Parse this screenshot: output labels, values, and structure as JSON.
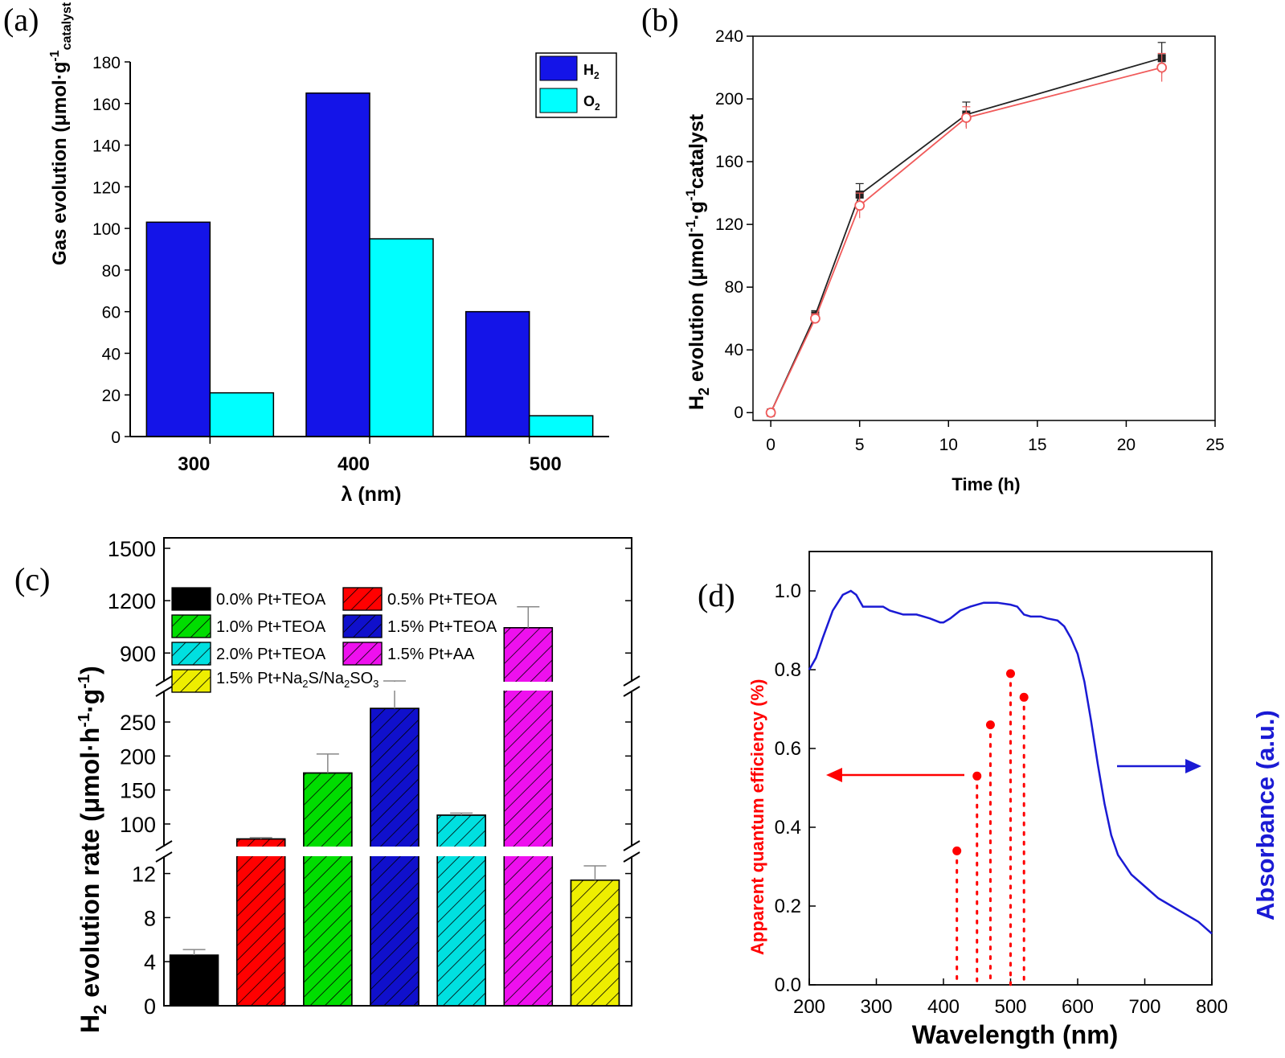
{
  "chart_data": [
    {
      "panel_label": "(a)",
      "type": "bar",
      "categories": [
        "300",
        "400",
        "500"
      ],
      "series": [
        {
          "name": "H2",
          "name_main": "H",
          "name_sub": "2",
          "color": "#1414e8",
          "values": [
            103,
            165,
            60
          ]
        },
        {
          "name": "O2",
          "name_main": "O",
          "name_sub": "2",
          "color": "#00ffff",
          "values": [
            21,
            95,
            10
          ]
        }
      ],
      "xlabel": "λ (nm)",
      "ylabel": "Gas evolution (μmol·g-1catalyst",
      "ylabel_parts": {
        "main": "Gas evolution (μmol·g",
        "sup": "-1",
        "sub": "catalyst"
      },
      "ylim": [
        0,
        180
      ],
      "yticks": [
        0,
        20,
        40,
        60,
        80,
        100,
        120,
        140,
        160,
        180
      ],
      "legend_position": "top-right"
    },
    {
      "panel_label": "(b)",
      "type": "line",
      "x": [
        0,
        2.5,
        5,
        11,
        22
      ],
      "series": [
        {
          "name": "",
          "marker": "filled-square",
          "color": "#222222",
          "values": [
            0,
            62,
            139,
            190,
            226
          ],
          "errors": [
            0,
            3,
            7,
            8,
            10
          ]
        },
        {
          "name": "",
          "marker": "open-circle",
          "color": "#f05a5a",
          "values": [
            0,
            60,
            132,
            188,
            220
          ],
          "errors": [
            0,
            3,
            8,
            7,
            9
          ]
        }
      ],
      "xlabel": "Time (h)",
      "ylabel": "H2 evolution (μmol-1·g-1catalyst",
      "ylabel_parts": {
        "h": "H",
        "two": "2",
        "rest1": " evolution (μmol",
        "sup1": "-1",
        "mid": "·g",
        "sup2": "-1",
        "rest2": "catalyst"
      },
      "xlim": [
        -1,
        25
      ],
      "ylim": [
        -5,
        240
      ],
      "xticks": [
        0,
        5,
        10,
        15,
        20,
        25
      ],
      "yticks": [
        0,
        40,
        80,
        120,
        160,
        200,
        240
      ]
    },
    {
      "panel_label": "(c)",
      "type": "bar",
      "categories": [
        "0.0% Pt+TEOA",
        "0.5% Pt+TEOA",
        "1.0% Pt+TEOA",
        "1.5% Pt+TEOA",
        "2.0% Pt+TEOA",
        "1.5% Pt+AA",
        "1.5% Pt+Na2S/Na2SO3"
      ],
      "values": [
        4.6,
        78,
        175,
        270,
        113,
        1045,
        11.4
      ],
      "errors": [
        0.5,
        2,
        28,
        30,
        3,
        120,
        1.3
      ],
      "colors": [
        "#000000",
        "#ff0000",
        "#00dd00",
        "#1010cc",
        "#00e0e0",
        "#ee10ee",
        "#eeee00"
      ],
      "hatched": [
        false,
        true,
        true,
        true,
        true,
        true,
        true
      ],
      "legend_labels": [
        {
          "main": "0.0% Pt+TEOA"
        },
        {
          "main": "0.5% Pt+TEOA"
        },
        {
          "main": "1.0% Pt+TEOA"
        },
        {
          "main": "1.5% Pt+TEOA"
        },
        {
          "main": "2.0% Pt+TEOA"
        },
        {
          "main": "1.5% Pt+AA"
        },
        {
          "main": "1.5% Pt+Na",
          "sub1": "2",
          "mid": "S/Na",
          "sub2": "2",
          "end": "SO",
          "sub3": "3"
        }
      ],
      "ylabel": "H2 evolution rate (μmol·h-1·g-1)",
      "ylabel_parts": {
        "h": "H",
        "two": "2",
        "rest1": " evolution rate (μmol·h",
        "sup1": "-1",
        "mid": "·g",
        "sup2": "-1",
        "end": ")"
      },
      "broken_axis": true,
      "segments": [
        {
          "range": [
            0,
            13.5
          ],
          "ticks": [
            0,
            4,
            8,
            12
          ]
        },
        {
          "range": [
            68,
            295
          ],
          "ticks": [
            100,
            150,
            200,
            250
          ]
        },
        {
          "range": [
            740,
            1560
          ],
          "ticks": [
            900,
            1200,
            1500
          ]
        }
      ],
      "legend_position": "top-left"
    },
    {
      "panel_label": "(d)",
      "type": "scatter",
      "series": [
        {
          "name": "Apparent quantum efficiency",
          "color": "#ff0000",
          "x": [
            420,
            450,
            470,
            500,
            520
          ],
          "values": [
            0.34,
            0.53,
            0.66,
            0.79,
            0.73
          ]
        },
        {
          "name": "Absorbance",
          "type": "line",
          "color": "#1a1ad4",
          "x": [
            200,
            210,
            220,
            235,
            250,
            262,
            270,
            280,
            290,
            300,
            310,
            320,
            340,
            360,
            380,
            395,
            400,
            410,
            425,
            440,
            460,
            480,
            500,
            510,
            515,
            520,
            530,
            545,
            555,
            570,
            580,
            590,
            600,
            610,
            620,
            630,
            640,
            650,
            660,
            680,
            700,
            720,
            740,
            760,
            780,
            800
          ],
          "values": [
            0.8,
            0.83,
            0.88,
            0.95,
            0.99,
            1.0,
            0.99,
            0.96,
            0.96,
            0.96,
            0.96,
            0.95,
            0.94,
            0.94,
            0.93,
            0.92,
            0.92,
            0.93,
            0.95,
            0.96,
            0.97,
            0.97,
            0.965,
            0.96,
            0.95,
            0.94,
            0.935,
            0.935,
            0.93,
            0.925,
            0.91,
            0.88,
            0.84,
            0.77,
            0.67,
            0.56,
            0.46,
            0.38,
            0.33,
            0.28,
            0.25,
            0.22,
            0.2,
            0.18,
            0.16,
            0.13
          ]
        }
      ],
      "xlabel": "Wavelength (nm)",
      "ylabel_left": "Apparent quantum efficiency (%)",
      "ylabel_right": "Absorbance (a.u.)",
      "xlim": [
        200,
        800
      ],
      "ylim": [
        0,
        1.1
      ],
      "xticks": [
        200,
        300,
        400,
        500,
        600,
        700,
        800
      ],
      "yticks": [
        0.0,
        0.2,
        0.4,
        0.6,
        0.8,
        1.0
      ]
    }
  ],
  "colors": {
    "left_arrow": "#ff0000",
    "right_arrow": "#1a1ad4",
    "axis": "#000000"
  }
}
